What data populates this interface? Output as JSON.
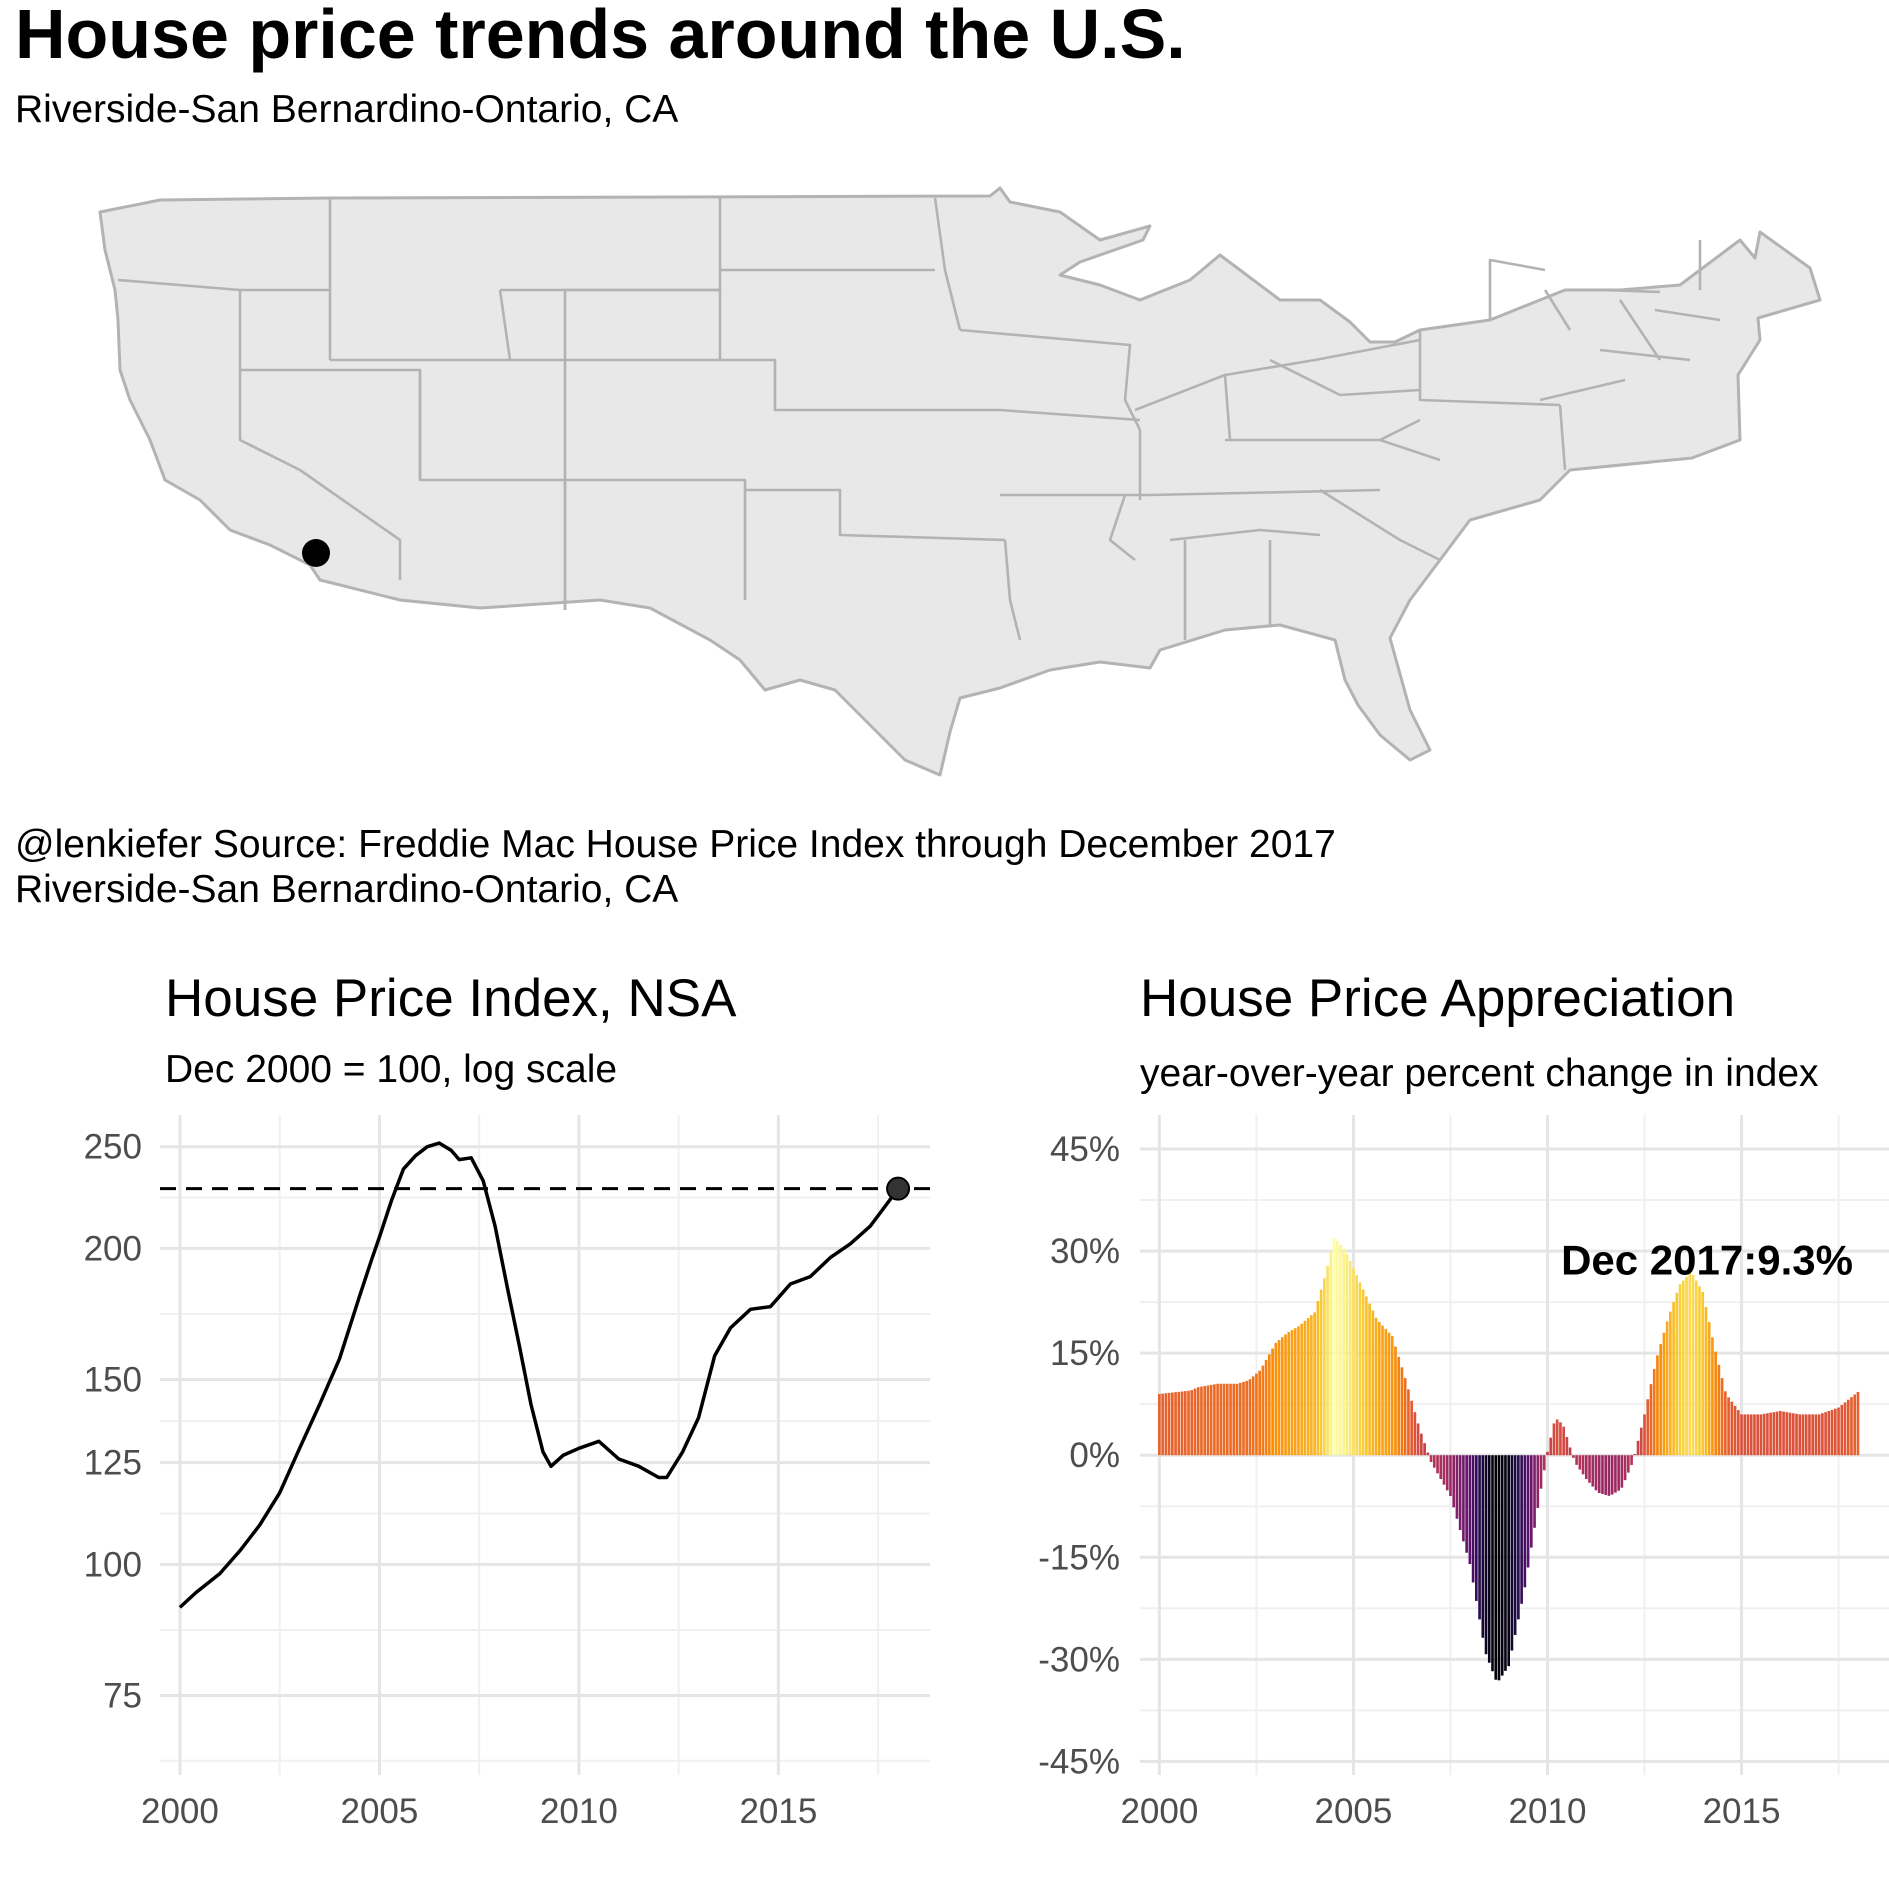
{
  "title": "House price trends around the U.S.",
  "subtitle": "Riverside-San Bernardino-Ontario, CA",
  "caption_line1": "@lenkiefer Source: Freddie Mac House Price Index through December 2017",
  "caption_line2": "Riverside-San Bernardino-Ontario, CA",
  "map": {
    "fill": "#e8e8e8",
    "border": "#b3b3b3",
    "marker": {
      "label": "Riverside-San Bernardino-Ontario, CA",
      "lon": -117.4,
      "lat": 34.0
    }
  },
  "chart_data": [
    {
      "type": "line",
      "title": "House Price Index, NSA",
      "subtitle": "Dec 2000 = 100, log scale",
      "scale_y": "log",
      "ylim": [
        63,
        268
      ],
      "xlim": [
        1999.5,
        2018.8
      ],
      "y_ticks": [
        75,
        100,
        125,
        150,
        200,
        250
      ],
      "y_tick_labels": [
        "75",
        "100",
        "125",
        "150",
        "200",
        "250"
      ],
      "x_ticks": [
        2000,
        2005,
        2010,
        2015
      ],
      "x_tick_labels": [
        "2000",
        "2005",
        "2010",
        "2015"
      ],
      "reference_line": {
        "y": 228,
        "style": "dashed"
      },
      "end_point": {
        "x": 2018.0,
        "y": 228
      },
      "series": [
        {
          "points": [
            [
              2000.0,
              91
            ],
            [
              2000.4,
              94
            ],
            [
              2001.0,
              98
            ],
            [
              2001.5,
              103
            ],
            [
              2002.0,
              109
            ],
            [
              2002.5,
              117
            ],
            [
              2003.0,
              129
            ],
            [
              2003.5,
              142
            ],
            [
              2004.0,
              157
            ],
            [
              2004.5,
              180
            ],
            [
              2004.8,
              195
            ],
            [
              2005.0,
              205
            ],
            [
              2005.3,
              222
            ],
            [
              2005.6,
              238
            ],
            [
              2005.9,
              245
            ],
            [
              2006.2,
              250
            ],
            [
              2006.5,
              252
            ],
            [
              2006.8,
              248
            ],
            [
              2007.0,
              243
            ],
            [
              2007.3,
              244
            ],
            [
              2007.6,
              232
            ],
            [
              2007.9,
              210
            ],
            [
              2008.2,
              184
            ],
            [
              2008.5,
              162
            ],
            [
              2008.8,
              142
            ],
            [
              2009.1,
              128
            ],
            [
              2009.3,
              124
            ],
            [
              2009.6,
              127
            ],
            [
              2010.0,
              129
            ],
            [
              2010.5,
              131
            ],
            [
              2011.0,
              126
            ],
            [
              2011.5,
              124
            ],
            [
              2012.0,
              121
            ],
            [
              2012.2,
              121
            ],
            [
              2012.6,
              128
            ],
            [
              2013.0,
              138
            ],
            [
              2013.4,
              158
            ],
            [
              2013.8,
              168
            ],
            [
              2014.3,
              175
            ],
            [
              2014.8,
              176
            ],
            [
              2015.3,
              185
            ],
            [
              2015.8,
              188
            ],
            [
              2016.3,
              196
            ],
            [
              2016.8,
              202
            ],
            [
              2017.3,
              210
            ],
            [
              2017.7,
              220
            ],
            [
              2018.0,
              228
            ]
          ]
        }
      ]
    },
    {
      "type": "bar",
      "title": "House Price Appreciation",
      "subtitle": "year-over-year percent change in index",
      "ylim": [
        -47,
        50
      ],
      "xlim": [
        1999.5,
        2018.8
      ],
      "y_ticks": [
        -45,
        -30,
        -15,
        0,
        15,
        30,
        45
      ],
      "y_tick_labels": [
        "-45%",
        "-30%",
        "-15%",
        "0%",
        "15%",
        "30%",
        "45%"
      ],
      "x_ticks": [
        2000,
        2005,
        2010,
        2015
      ],
      "x_tick_labels": [
        "2000",
        "2005",
        "2010",
        "2015"
      ],
      "annotation": {
        "text": "Dec 2017:9.3%",
        "x": 2018.0,
        "y": 28.5
      },
      "colormap": "inferno",
      "x_start": 2000.0,
      "x_end": 2018.0,
      "keyframes": [
        [
          2000.0,
          9.0
        ],
        [
          2000.8,
          9.5
        ],
        [
          2001.0,
          10.0
        ],
        [
          2001.5,
          10.5
        ],
        [
          2002.0,
          10.5
        ],
        [
          2002.3,
          11.0
        ],
        [
          2002.6,
          12.5
        ],
        [
          2003.0,
          16.5
        ],
        [
          2003.3,
          18.0
        ],
        [
          2003.6,
          19.0
        ],
        [
          2004.0,
          21.0
        ],
        [
          2004.3,
          27.0
        ],
        [
          2004.5,
          32.0
        ],
        [
          2004.8,
          30.0
        ],
        [
          2005.2,
          25.0
        ],
        [
          2005.6,
          20.0
        ],
        [
          2006.0,
          17.5
        ],
        [
          2006.3,
          12.0
        ],
        [
          2006.7,
          4.0
        ],
        [
          2007.0,
          -1.0
        ],
        [
          2007.5,
          -6.0
        ],
        [
          2008.0,
          -16.0
        ],
        [
          2008.4,
          -29.0
        ],
        [
          2008.7,
          -33.5
        ],
        [
          2009.0,
          -31.0
        ],
        [
          2009.4,
          -20.0
        ],
        [
          2009.8,
          -6.0
        ],
        [
          2010.0,
          0.5
        ],
        [
          2010.2,
          5.5
        ],
        [
          2010.4,
          4.5
        ],
        [
          2010.7,
          -1.0
        ],
        [
          2011.0,
          -3.5
        ],
        [
          2011.3,
          -5.5
        ],
        [
          2011.6,
          -6.0
        ],
        [
          2011.9,
          -5.0
        ],
        [
          2012.2,
          -1.0
        ],
        [
          2012.5,
          6.0
        ],
        [
          2012.8,
          14.0
        ],
        [
          2013.1,
          20.0
        ],
        [
          2013.4,
          25.0
        ],
        [
          2013.7,
          27.0
        ],
        [
          2014.0,
          24.0
        ],
        [
          2014.3,
          16.0
        ],
        [
          2014.6,
          9.0
        ],
        [
          2015.0,
          6.0
        ],
        [
          2015.5,
          6.0
        ],
        [
          2016.0,
          6.5
        ],
        [
          2016.5,
          6.0
        ],
        [
          2017.0,
          6.0
        ],
        [
          2017.5,
          7.0
        ],
        [
          2018.0,
          9.3
        ]
      ]
    }
  ]
}
